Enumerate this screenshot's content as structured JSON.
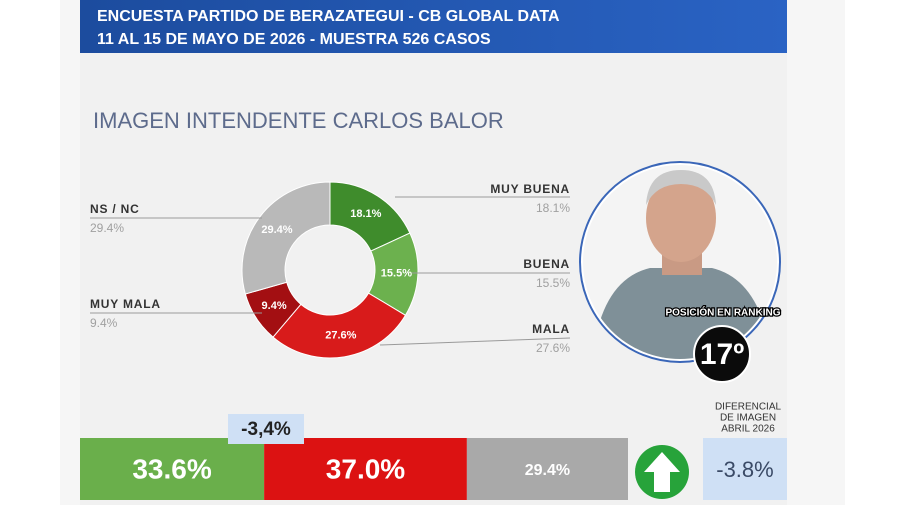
{
  "header": {
    "lines": [
      "ENCUESTA PARTIDO DE BERAZATEGUI - CB GLOBAL DATA",
      "11 AL 15 DE MAYO DE 2026 - MUESTRA 526 CASOS"
    ]
  },
  "chart_data": [
    {
      "type": "donut",
      "title": "IMAGEN INTENDENTE  CARLOS BALOR",
      "categories": [
        "MUY BUENA",
        "BUENA",
        "MALA",
        "MUY MALA",
        "NS / NC"
      ],
      "values": [
        18.1,
        15.5,
        27.6,
        9.4,
        29.4
      ],
      "value_labels": [
        "18.1%",
        "15.5%",
        "27.6%",
        "9.4%",
        "29.4%"
      ],
      "colors": [
        "#3f8c2c",
        "#6cb14e",
        "#d81b1b",
        "#a30f12",
        "#b9b9b9"
      ]
    },
    {
      "type": "stacked-bar",
      "values": [
        33.6,
        37.0,
        29.4
      ],
      "value_labels": [
        "33.6%",
        "37.0%",
        "29.4%"
      ],
      "colors": [
        "#6aaf4b",
        "#dc1212",
        "#a9a9a9"
      ]
    }
  ],
  "ranking": {
    "label": "POSICIÓN EN RANKING",
    "position": "17º"
  },
  "difference": "-3,4%",
  "differential": {
    "label": [
      "DIFERENCIAL",
      "DE IMAGEN",
      "ABRIL 2026"
    ],
    "value": "-3.8%"
  }
}
